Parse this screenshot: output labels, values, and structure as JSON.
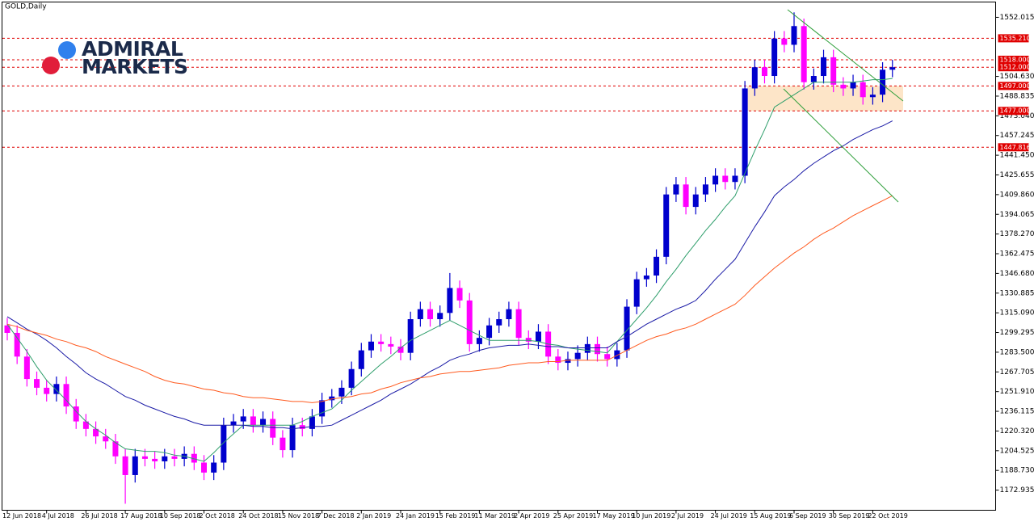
{
  "logo": [
    "ADMIRAL",
    "MARKETS"
  ],
  "chart_data": {
    "type": "candlestick",
    "title": "GOLD,Daily",
    "categories": [
      "12 Jun 2018",
      null,
      null,
      null,
      "4 Jul 2018",
      null,
      null,
      null,
      "26 Jul 2018",
      null,
      null,
      null,
      "17 Aug 2018",
      null,
      null,
      null,
      "10 Sep 2018",
      null,
      null,
      null,
      "2 Oct 2018",
      null,
      null,
      null,
      "24 Oct 2018",
      null,
      null,
      null,
      "15 Nov 2018",
      null,
      null,
      null,
      "7 Dec 2018",
      null,
      null,
      null,
      "2 Jan 2019",
      null,
      null,
      null,
      "24 Jan 2019",
      null,
      null,
      null,
      "15 Feb 2019",
      null,
      null,
      null,
      "11 Mar 2019",
      null,
      null,
      null,
      "2 Apr 2019",
      null,
      null,
      null,
      "25 Apr 2019",
      null,
      null,
      null,
      "17 May 2019",
      null,
      null,
      null,
      "10 Jun 2019",
      null,
      null,
      null,
      "2 Jul 2019",
      null,
      null,
      null,
      "24 Jul 2019",
      null,
      null,
      null,
      "15 Aug 2019",
      null,
      null,
      null,
      "6 Sep 2019",
      null,
      null,
      null,
      "30 Sep 2019",
      null,
      null,
      null,
      "22 Oct 2019",
      null,
      null
    ],
    "open": [
      1305,
      1299,
      1280,
      1262,
      1255,
      1250,
      1258,
      1240,
      1228,
      1222,
      1216,
      1212,
      1200,
      1185,
      1200,
      1198,
      1196,
      1200,
      1198,
      1202,
      1195,
      1187,
      1195,
      1225,
      1228,
      1232,
      1225,
      1230,
      1215,
      1205,
      1225,
      1222,
      1232,
      1245,
      1248,
      1255,
      1270,
      1285,
      1292,
      1290,
      1288,
      1283,
      1310,
      1318,
      1310,
      1315,
      1335,
      1325,
      1290,
      1295,
      1305,
      1310,
      1318,
      1295,
      1292,
      1300,
      1280,
      1275,
      1278,
      1283,
      1290,
      1282,
      1278,
      1285,
      1320,
      1342,
      1345,
      1360,
      1410,
      1418,
      1400,
      1410,
      1418,
      1425,
      1420,
      1425,
      1495,
      1512,
      1505,
      1535,
      1530,
      1545,
      1500,
      1505,
      1520,
      1498,
      1495,
      1500,
      1488,
      1490,
      1510
    ],
    "high": [
      1311,
      1305,
      1286,
      1268,
      1261,
      1264,
      1264,
      1246,
      1234,
      1228,
      1222,
      1218,
      1206,
      1206,
      1206,
      1204,
      1206,
      1206,
      1208,
      1208,
      1201,
      1201,
      1231,
      1234,
      1238,
      1238,
      1236,
      1236,
      1221,
      1231,
      1231,
      1238,
      1251,
      1254,
      1261,
      1276,
      1291,
      1298,
      1298,
      1296,
      1294,
      1316,
      1324,
      1324,
      1321,
      1347,
      1341,
      1331,
      1301,
      1311,
      1316,
      1324,
      1324,
      1301,
      1306,
      1306,
      1286,
      1284,
      1289,
      1296,
      1296,
      1288,
      1291,
      1326,
      1348,
      1351,
      1366,
      1416,
      1424,
      1424,
      1416,
      1424,
      1431,
      1431,
      1431,
      1501,
      1518,
      1518,
      1541,
      1541,
      1556,
      1551,
      1511,
      1526,
      1526,
      1504,
      1506,
      1506,
      1496,
      1516,
      1518
    ],
    "low": [
      1293,
      1274,
      1256,
      1249,
      1244,
      1244,
      1234,
      1222,
      1216,
      1210,
      1206,
      1194,
      1162,
      1179,
      1192,
      1190,
      1190,
      1192,
      1192,
      1189,
      1181,
      1181,
      1189,
      1219,
      1222,
      1219,
      1219,
      1209,
      1199,
      1199,
      1216,
      1216,
      1226,
      1239,
      1242,
      1249,
      1264,
      1279,
      1284,
      1282,
      1277,
      1277,
      1304,
      1304,
      1304,
      1309,
      1319,
      1284,
      1284,
      1289,
      1299,
      1304,
      1289,
      1286,
      1286,
      1274,
      1269,
      1269,
      1272,
      1277,
      1276,
      1272,
      1272,
      1279,
      1314,
      1336,
      1339,
      1354,
      1404,
      1394,
      1394,
      1404,
      1412,
      1414,
      1414,
      1419,
      1489,
      1499,
      1499,
      1524,
      1524,
      1494,
      1494,
      1499,
      1492,
      1489,
      1489,
      1482,
      1482,
      1484,
      1504
    ],
    "close": [
      1299,
      1280,
      1262,
      1255,
      1250,
      1258,
      1240,
      1228,
      1222,
      1216,
      1212,
      1200,
      1185,
      1200,
      1198,
      1196,
      1200,
      1198,
      1202,
      1195,
      1187,
      1195,
      1225,
      1228,
      1232,
      1225,
      1230,
      1215,
      1205,
      1225,
      1222,
      1232,
      1245,
      1248,
      1255,
      1270,
      1285,
      1292,
      1290,
      1288,
      1283,
      1310,
      1318,
      1310,
      1315,
      1335,
      1325,
      1290,
      1295,
      1305,
      1310,
      1318,
      1295,
      1292,
      1300,
      1280,
      1275,
      1278,
      1283,
      1290,
      1282,
      1278,
      1285,
      1320,
      1342,
      1345,
      1360,
      1410,
      1418,
      1400,
      1410,
      1418,
      1425,
      1420,
      1425,
      1495,
      1512,
      1505,
      1535,
      1530,
      1545,
      1500,
      1505,
      1520,
      1498,
      1495,
      1500,
      1488,
      1490,
      1510,
      1512
    ],
    "up_color": "#0000cd",
    "down_color": "#ff00ff",
    "lines": [
      {
        "color": "#2e9e6b",
        "values": [
          1306,
          1295,
          1284,
          1272,
          1261,
          1253,
          1245,
          1236,
          1228,
          1222,
          1217,
          1211,
          1206,
          1205,
          1204,
          1204,
          1203,
          1201,
          1200,
          1198,
          1196,
          1203,
          1211,
          1218,
          1225,
          1225,
          1225,
          1225,
          1225,
          1225,
          1228,
          1232,
          1235,
          1238,
          1245,
          1253,
          1260,
          1267,
          1274,
          1280,
          1287,
          1293,
          1297,
          1301,
          1305,
          1309,
          1305,
          1301,
          1297,
          1293,
          1293,
          1293,
          1293,
          1293,
          1292,
          1290,
          1289,
          1287,
          1286,
          1285,
          1284,
          1283,
          1292,
          1301,
          1310,
          1319,
          1329,
          1340,
          1350,
          1361,
          1371,
          1381,
          1390,
          1400,
          1409,
          1427,
          1445,
          1462,
          1480,
          1485,
          1490,
          1495,
          1500,
          1500,
          1500,
          1500,
          1500,
          1501,
          1502,
          1502,
          1503
        ]
      },
      {
        "color": "#1a1aa6",
        "values": [
          1312,
          1307,
          1302,
          1298,
          1293,
          1287,
          1280,
          1274,
          1267,
          1262,
          1258,
          1253,
          1248,
          1245,
          1241,
          1238,
          1235,
          1232,
          1230,
          1227,
          1225,
          1225,
          1225,
          1225,
          1225,
          1224,
          1224,
          1223,
          1223,
          1222,
          1223,
          1224,
          1224,
          1225,
          1229,
          1233,
          1237,
          1241,
          1245,
          1250,
          1254,
          1258,
          1263,
          1268,
          1272,
          1277,
          1280,
          1282,
          1285,
          1287,
          1288,
          1289,
          1289,
          1290,
          1289,
          1288,
          1288,
          1287,
          1287,
          1287,
          1287,
          1287,
          1292,
          1296,
          1301,
          1306,
          1310,
          1314,
          1318,
          1321,
          1325,
          1333,
          1342,
          1350,
          1358,
          1371,
          1384,
          1396,
          1409,
          1416,
          1422,
          1429,
          1435,
          1440,
          1445,
          1449,
          1454,
          1458,
          1462,
          1465,
          1469
        ]
      },
      {
        "color": "#ff5a1f",
        "values": [
          1306,
          1304,
          1301,
          1299,
          1297,
          1294,
          1292,
          1289,
          1287,
          1284,
          1280,
          1277,
          1274,
          1271,
          1268,
          1264,
          1261,
          1259,
          1258,
          1256,
          1254,
          1253,
          1251,
          1250,
          1248,
          1247,
          1247,
          1246,
          1245,
          1244,
          1244,
          1243,
          1244,
          1246,
          1247,
          1248,
          1250,
          1251,
          1254,
          1256,
          1259,
          1261,
          1263,
          1264,
          1266,
          1267,
          1268,
          1268,
          1269,
          1270,
          1271,
          1273,
          1274,
          1275,
          1275,
          1276,
          1276,
          1277,
          1277,
          1277,
          1277,
          1277,
          1281,
          1285,
          1289,
          1293,
          1296,
          1298,
          1301,
          1303,
          1306,
          1310,
          1314,
          1318,
          1322,
          1329,
          1337,
          1344,
          1351,
          1357,
          1363,
          1368,
          1374,
          1379,
          1383,
          1388,
          1393,
          1397,
          1401,
          1405,
          1409
        ]
      }
    ],
    "levels": {
      "values": [
        1535.21,
        1518,
        1512,
        1497,
        1477,
        1447.816
      ],
      "value_labels": [
        "1535.210",
        "1518.000",
        "1512.000",
        "1497.000",
        "1477.000",
        "1447.816"
      ],
      "color": "#e00000",
      "zone_color": "#fde5c8"
    },
    "ylim": [
      1156.79,
      1564.29
    ],
    "yticks": [
      1552.015,
      {
        "value": 1504.63,
        "label": "1504.630"
      },
      1488.835,
      {
        "value": 1473.04,
        "label": "1473.040"
      },
      1457.245,
      {
        "value": 1441.45,
        "label": "1441.450"
      },
      1425.655,
      {
        "value": 1409.86,
        "label": "1409.860"
      },
      1394.065,
      {
        "value": 1378.27,
        "label": "1378.270"
      },
      1362.475,
      {
        "value": 1346.68,
        "label": "1346.680"
      },
      1330.885,
      {
        "value": 1315.09,
        "label": "1315.090"
      },
      1299.295,
      {
        "value": 1283.5,
        "label": "1283.500"
      },
      1267.705,
      {
        "value": 1251.91,
        "label": "1251.910"
      },
      1236.115,
      {
        "value": 1220.32,
        "label": "1220.320"
      },
      1204.525,
      {
        "value": 1188.73,
        "label": "1188.730"
      },
      1172.935
    ],
    "grid": false
  }
}
